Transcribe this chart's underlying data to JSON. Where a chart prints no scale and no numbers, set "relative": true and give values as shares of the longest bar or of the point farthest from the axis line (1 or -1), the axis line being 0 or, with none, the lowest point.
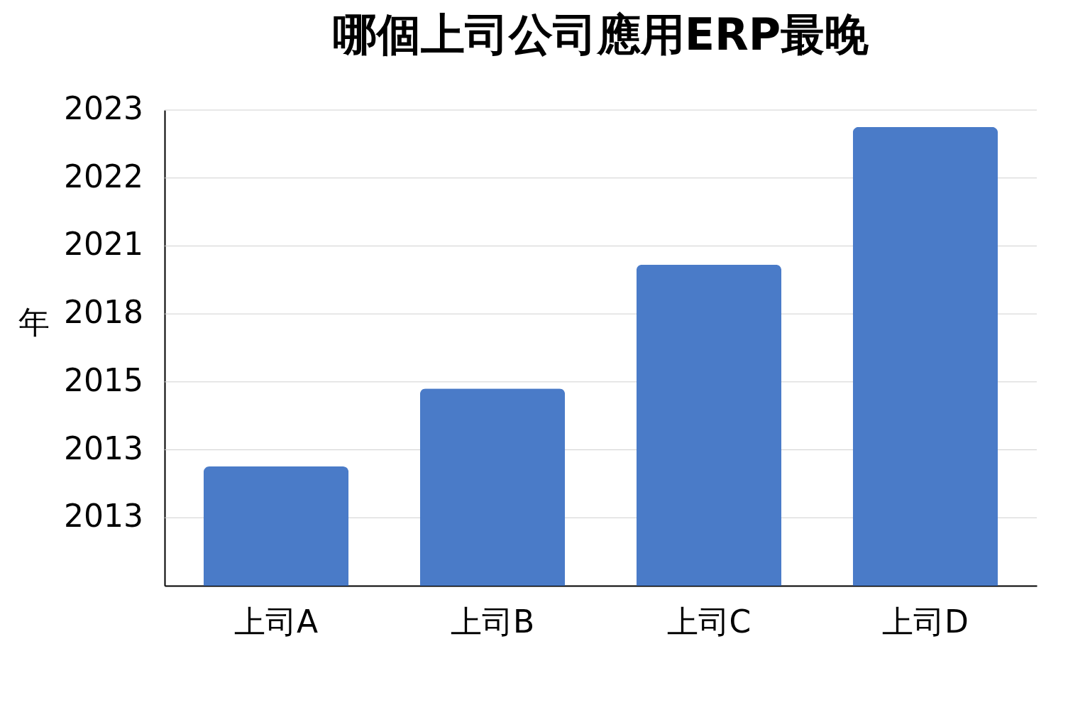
{
  "chart_data": {
    "type": "bar",
    "title": "哪個上司公司應用ERP最晚",
    "ylabel": "年",
    "categories": [
      "上司A",
      "上司B",
      "上司C",
      "上司D"
    ],
    "values": [
      0.26,
      0.43,
      0.7,
      1
    ],
    "color": "#4a7bc8",
    "relative": true,
    "annotations": [
      "2013",
      "2013",
      "2015",
      "2018",
      "2021",
      "2022",
      "2023"
    ],
    "grid": "y"
  }
}
